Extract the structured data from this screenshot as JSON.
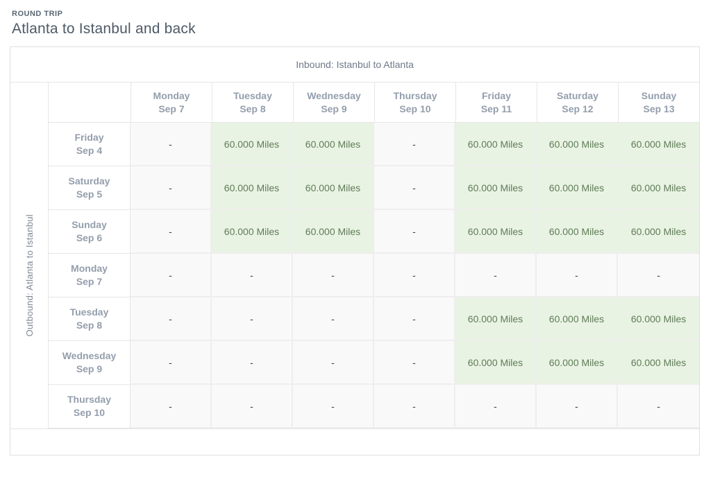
{
  "header": {
    "eyebrow": "ROUND TRIP",
    "title": "Atlanta to Istanbul and back"
  },
  "calendar": {
    "inbound_label": "Inbound: Istanbul to Atlanta",
    "outbound_label": "Outbound: Atlanta to Istanbul",
    "empty_symbol": "-",
    "award_value": "60.000 Miles",
    "columns": [
      {
        "day": "Monday",
        "date": "Sep 7"
      },
      {
        "day": "Tuesday",
        "date": "Sep 8"
      },
      {
        "day": "Wednesday",
        "date": "Sep 9"
      },
      {
        "day": "Thursday",
        "date": "Sep 10"
      },
      {
        "day": "Friday",
        "date": "Sep 11"
      },
      {
        "day": "Saturday",
        "date": "Sep 12"
      },
      {
        "day": "Sunday",
        "date": "Sep 13"
      }
    ],
    "rows": [
      {
        "day": "Friday",
        "date": "Sep 4",
        "cells": [
          "-",
          "60.000 Miles",
          "60.000 Miles",
          "-",
          "60.000 Miles",
          "60.000 Miles",
          "60.000 Miles"
        ]
      },
      {
        "day": "Saturday",
        "date": "Sep 5",
        "cells": [
          "-",
          "60.000 Miles",
          "60.000 Miles",
          "-",
          "60.000 Miles",
          "60.000 Miles",
          "60.000 Miles"
        ]
      },
      {
        "day": "Sunday",
        "date": "Sep 6",
        "cells": [
          "-",
          "60.000 Miles",
          "60.000 Miles",
          "-",
          "60.000 Miles",
          "60.000 Miles",
          "60.000 Miles"
        ]
      },
      {
        "day": "Monday",
        "date": "Sep 7",
        "cells": [
          "-",
          "-",
          "-",
          "-",
          "-",
          "-",
          "-"
        ]
      },
      {
        "day": "Tuesday",
        "date": "Sep 8",
        "cells": [
          "-",
          "-",
          "-",
          "-",
          "60.000 Miles",
          "60.000 Miles",
          "60.000 Miles"
        ]
      },
      {
        "day": "Wednesday",
        "date": "Sep 9",
        "cells": [
          "-",
          "-",
          "-",
          "-",
          "60.000 Miles",
          "60.000 Miles",
          "60.000 Miles"
        ]
      },
      {
        "day": "Thursday",
        "date": "Sep 10",
        "cells": [
          "-",
          "-",
          "-",
          "-",
          "-",
          "-",
          "-"
        ]
      }
    ],
    "colors": {
      "award_bg": "#e9f3e3",
      "award_text": "#5e7c57",
      "empty_bg": "#f9f9f9",
      "header_text": "#939eac"
    }
  }
}
